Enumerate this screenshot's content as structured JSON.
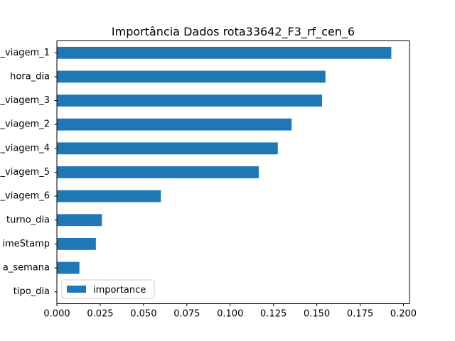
{
  "chart_data": {
    "type": "bar",
    "orientation": "horizontal",
    "title": "Importância Dados rota33642_F3_rf_cen_6",
    "xlabel": "",
    "ylabel": "",
    "xlim": [
      0,
      0.2035
    ],
    "xticks": [
      "0.000",
      "0.025",
      "0.050",
      "0.075",
      "0.100",
      "0.125",
      "0.150",
      "0.175",
      "0.200"
    ],
    "xtick_values": [
      0,
      0.025,
      0.05,
      0.075,
      0.1,
      0.125,
      0.15,
      0.175,
      0.2
    ],
    "categories": [
      "_viagem_1",
      "hora_dia",
      "_viagem_3",
      "_viagem_2",
      "_viagem_4",
      "_viagem_5",
      "_viagem_6",
      "turno_dia",
      "imeStamp",
      "a_semana",
      "tipo_dia"
    ],
    "series": [
      {
        "name": "importance",
        "color": "#1f77b4",
        "values": [
          0.193,
          0.155,
          0.153,
          0.1355,
          0.1275,
          0.1165,
          0.06,
          0.026,
          0.0225,
          0.013,
          0.0
        ]
      }
    ],
    "legend": {
      "position": "lower-left",
      "entries": [
        "importance"
      ]
    },
    "grid": false
  }
}
